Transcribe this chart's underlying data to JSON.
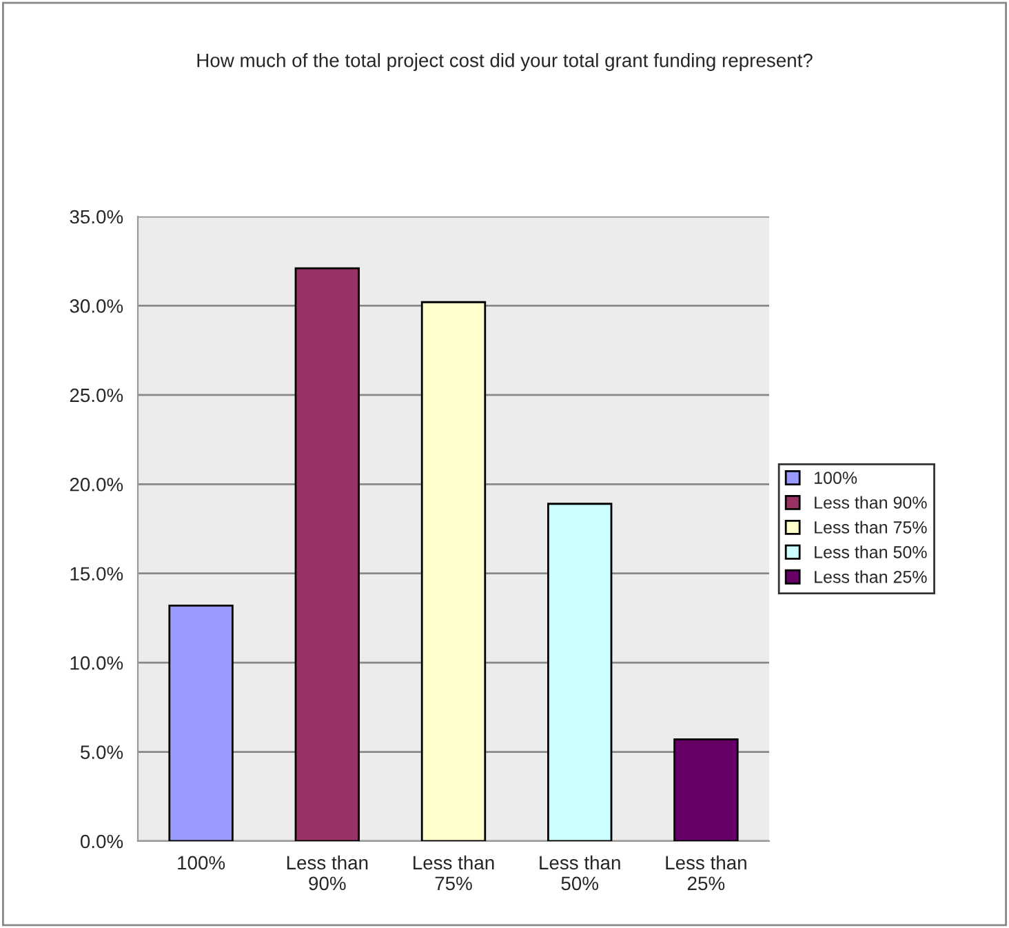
{
  "chart_data": {
    "type": "bar",
    "title": "How much of the total project cost did your total grant funding represent?",
    "categories": [
      "100%",
      "Less than\n90%",
      "Less than\n75%",
      "Less than\n50%",
      "Less than\n25%"
    ],
    "series": [
      {
        "name": "100%",
        "color": "#9999ff",
        "values": [
          13.2,
          null,
          null,
          null,
          null
        ]
      },
      {
        "name": "Less than 90%",
        "color": "#993366",
        "values": [
          null,
          32.1,
          null,
          null,
          null
        ]
      },
      {
        "name": "Less than 75%",
        "color": "#ffffcc",
        "values": [
          null,
          null,
          30.2,
          null,
          null
        ]
      },
      {
        "name": "Less than 50%",
        "color": "#ccffff",
        "values": [
          null,
          null,
          null,
          18.9,
          null
        ]
      },
      {
        "name": "Less than 25%",
        "color": "#660066",
        "values": [
          null,
          null,
          null,
          null,
          5.7
        ]
      }
    ],
    "ylim": [
      0,
      35
    ],
    "yticks": [
      {
        "value": 0,
        "label": "0.0%"
      },
      {
        "value": 5,
        "label": "5.0%"
      },
      {
        "value": 10,
        "label": "10.0%"
      },
      {
        "value": 15,
        "label": "15.0%"
      },
      {
        "value": 20,
        "label": "20.0%"
      },
      {
        "value": 25,
        "label": "25.0%"
      },
      {
        "value": 30,
        "label": "30.0%"
      },
      {
        "value": 35,
        "label": "35.0%"
      }
    ],
    "grid": "y",
    "legend": "right"
  }
}
